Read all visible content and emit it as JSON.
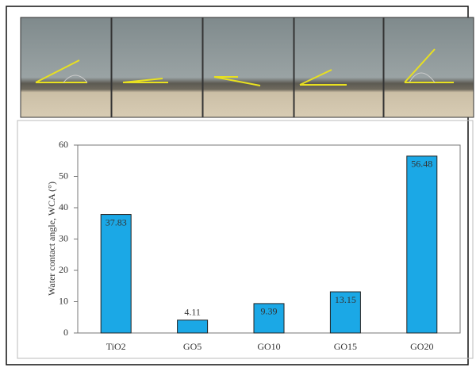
{
  "chart_data": {
    "type": "bar",
    "y_label": "Water contact angle, WCA (°)",
    "categories": [
      "TiO2",
      "GO5",
      "GO10",
      "GO15",
      "GO20"
    ],
    "values": [
      37.83,
      4.11,
      9.39,
      13.15,
      56.48
    ],
    "color": "#1ba8e6",
    "ylim": [
      0,
      60
    ],
    "yticks": [
      0,
      10,
      20,
      30,
      40,
      50,
      60
    ],
    "grid": false
  }
}
